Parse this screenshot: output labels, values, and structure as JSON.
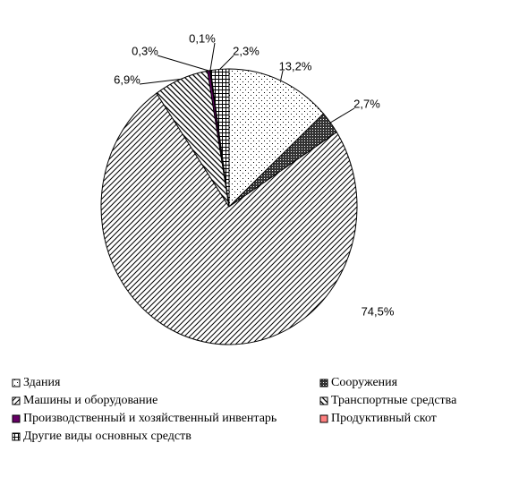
{
  "chart_data": {
    "type": "pie",
    "categories": [
      "Здания",
      "Сооружения",
      "Машины и оборудование",
      "Транспортные средства",
      "Производственный и хозяйственный инвентарь",
      "Продуктивный скот",
      "Другие виды основных средств"
    ],
    "values": [
      13.2,
      2.7,
      74.5,
      6.9,
      0.3,
      0.1,
      2.3
    ],
    "value_labels": [
      "13,2%",
      "2,7%",
      "74,5%",
      "6,9%",
      "0,3%",
      "0,1%",
      "2,3%"
    ],
    "colors": [
      "#000000",
      "#333333",
      "#000000",
      "#000000",
      "#660066",
      "#ff8080",
      "#000000"
    ],
    "patterns": [
      "dots",
      "dense",
      "diagonal",
      "back-diagonal",
      "solid",
      "solid",
      "grid"
    ],
    "legend": "bottom"
  }
}
